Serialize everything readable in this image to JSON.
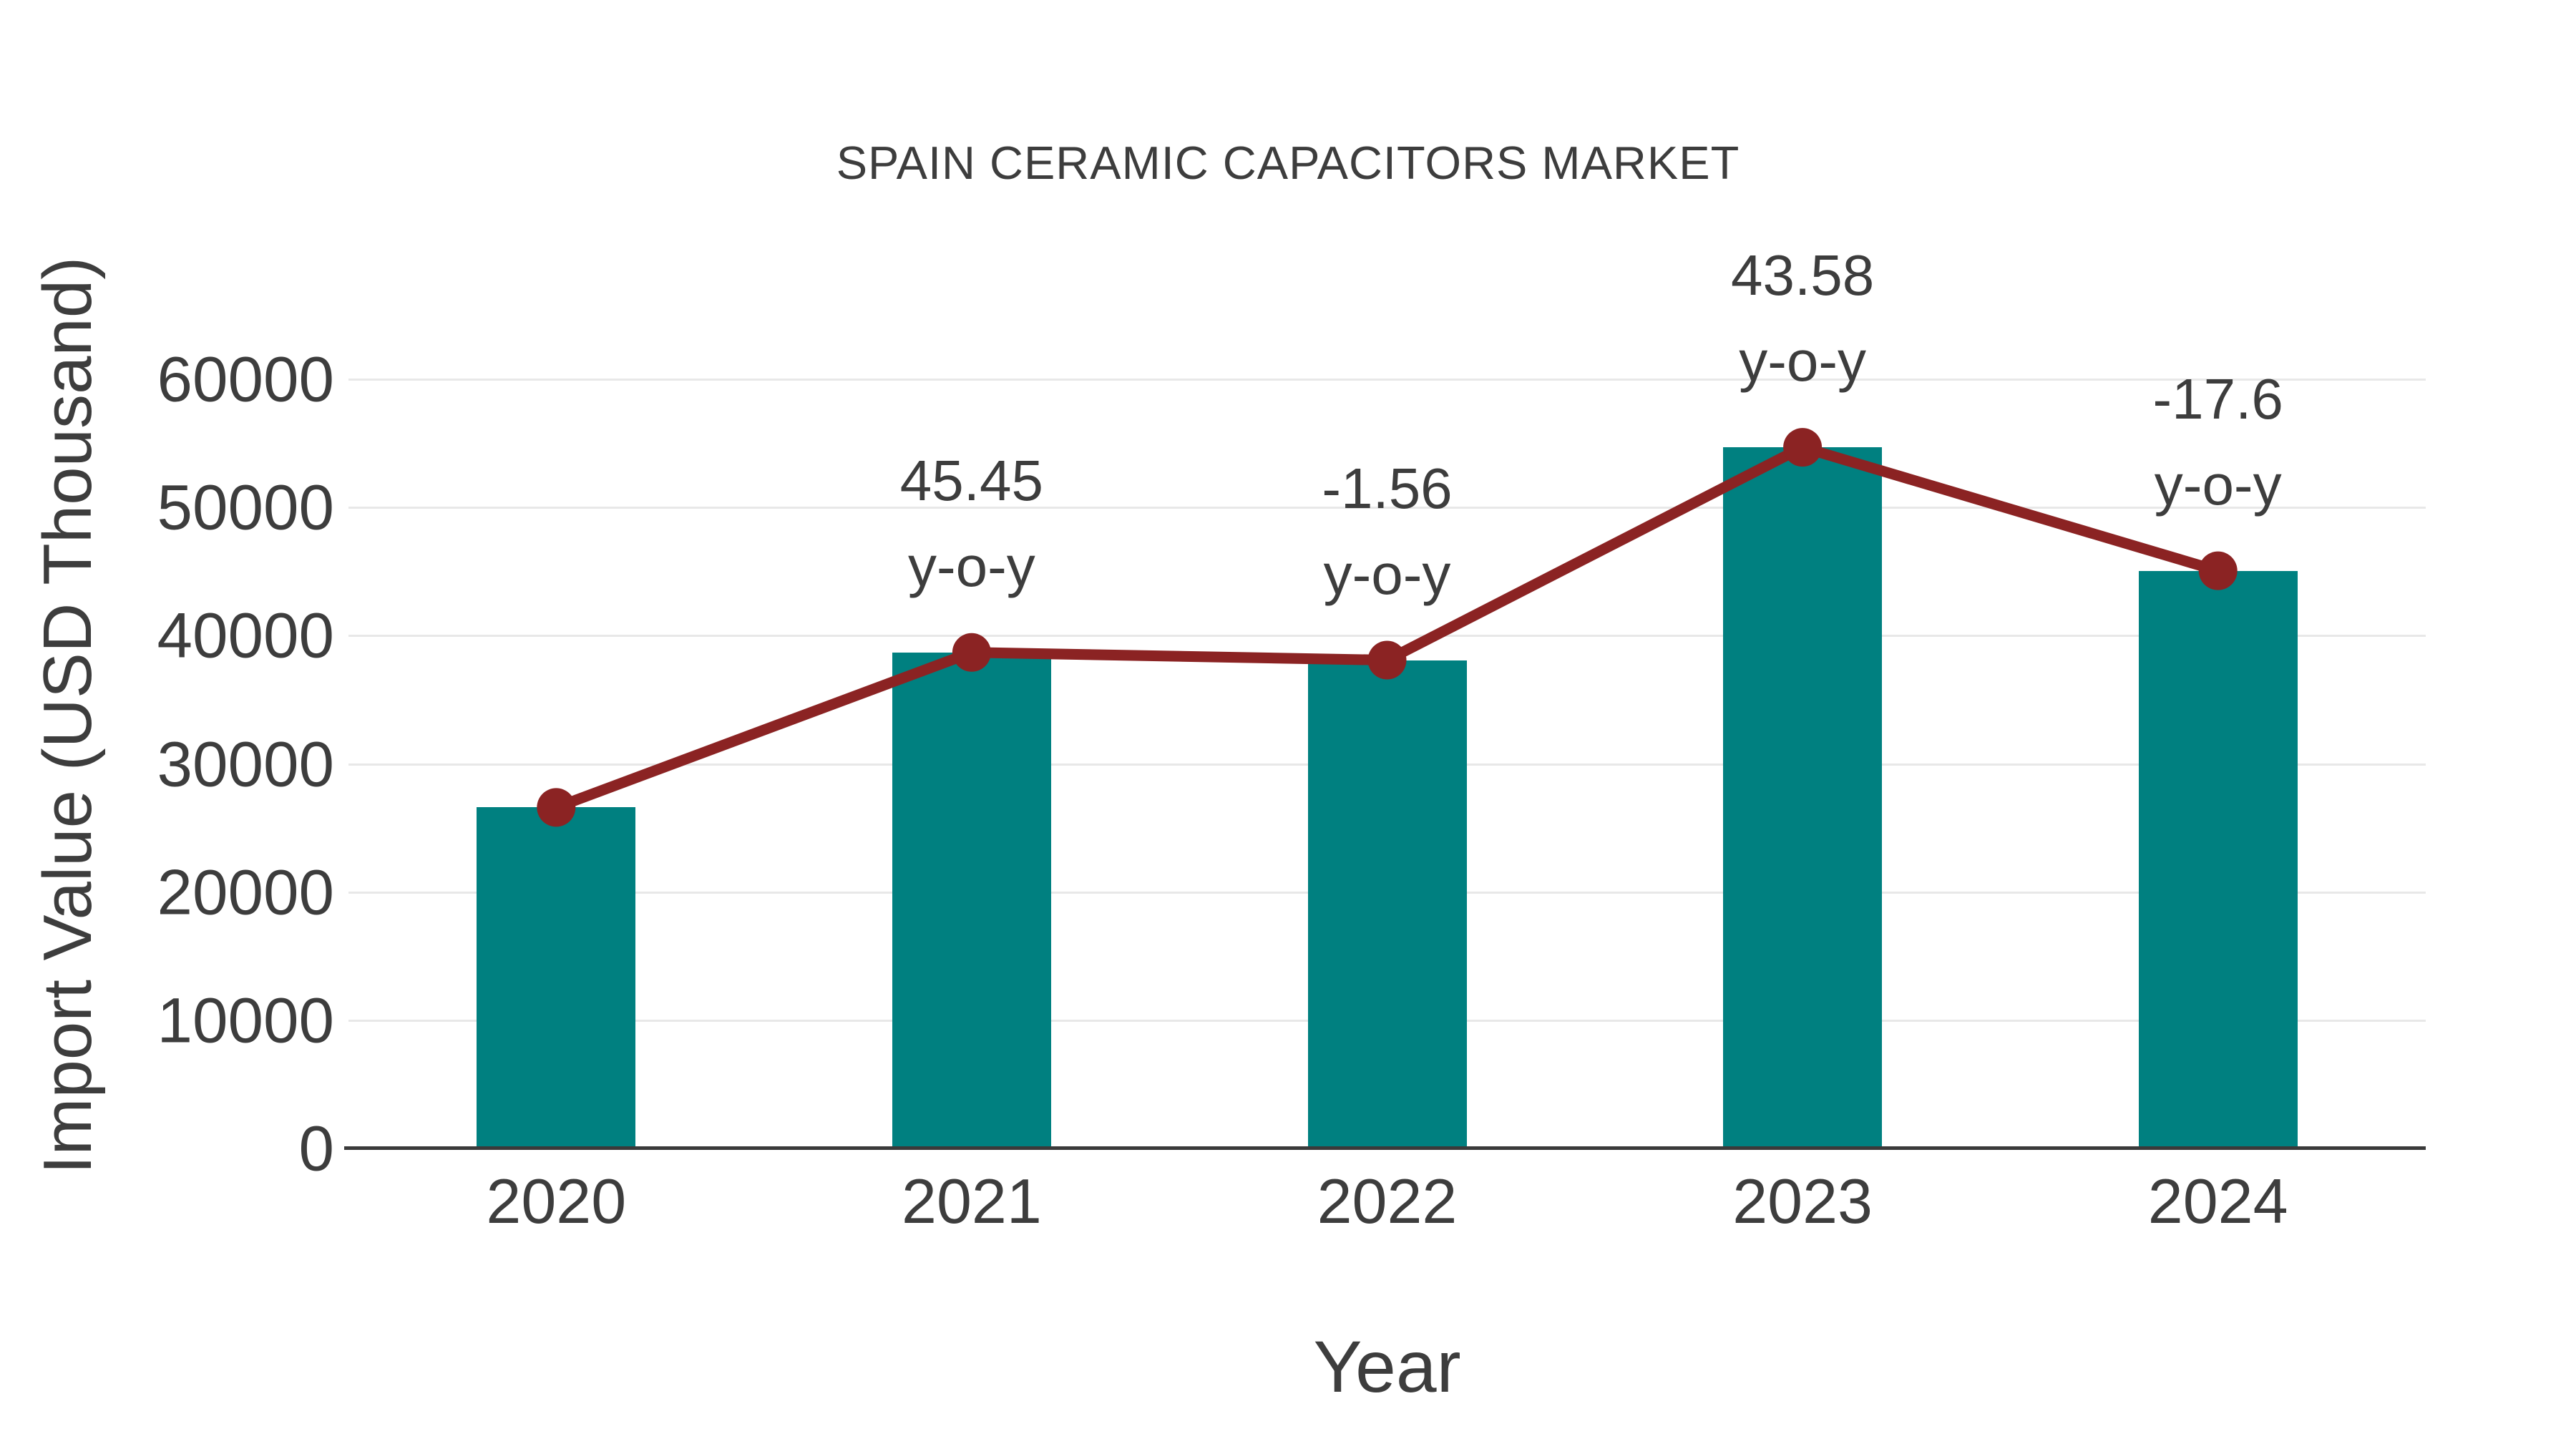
{
  "chart_data": {
    "type": "bar",
    "overlay": "line",
    "title": "SPAIN CERAMIC CAPACITORS MARKET",
    "xlabel": "Year",
    "ylabel": "Import Value (USD Thousand)",
    "categories": [
      "2020",
      "2021",
      "2022",
      "2023",
      "2024"
    ],
    "values": [
      26600,
      38690,
      38090,
      54690,
      45060
    ],
    "yoy_labels": [
      null,
      "45.45",
      "-1.56",
      "43.58",
      "-17.6"
    ],
    "yoy_suffix": "y-o-y",
    "ylim": [
      0,
      60000
    ],
    "yticks": [
      0,
      10000,
      20000,
      30000,
      40000,
      50000,
      60000
    ],
    "grid": "horizontal",
    "legend": "none",
    "colors": {
      "bar": "#008080",
      "line": "#8B2323",
      "grid": "#e8e8e8",
      "axis": "#3a3a3a",
      "text": "#3d3d3d",
      "background": "#ffffff"
    }
  }
}
